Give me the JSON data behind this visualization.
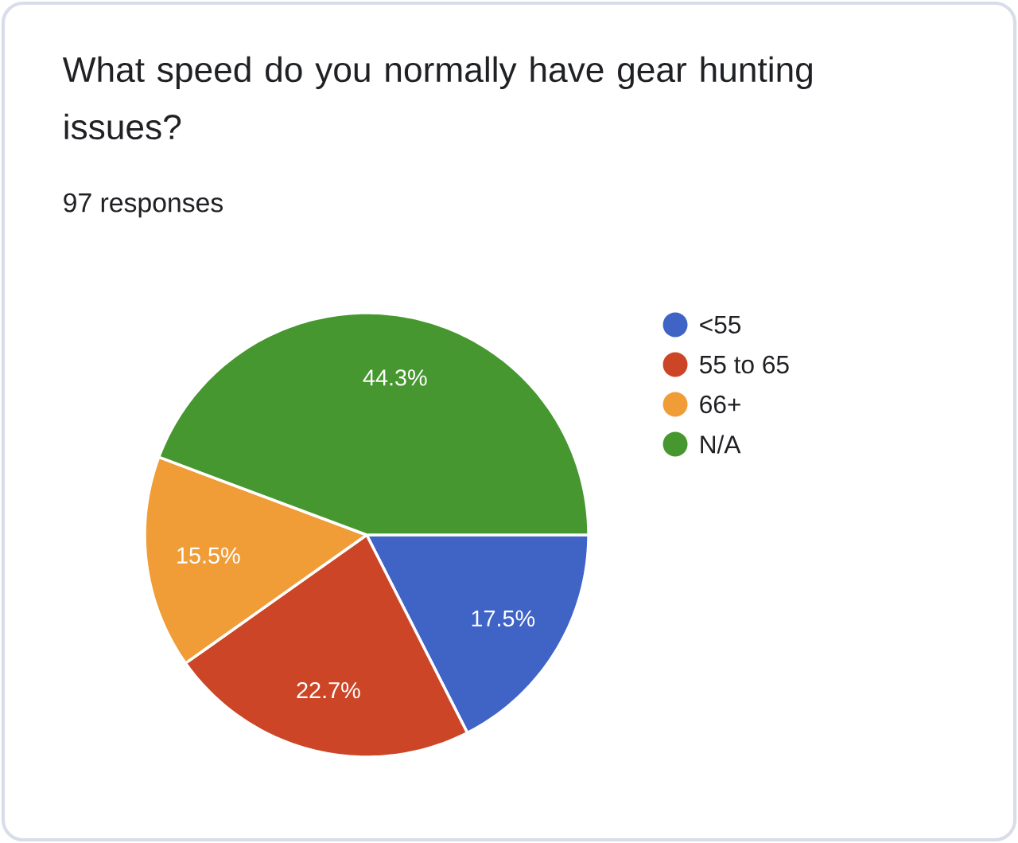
{
  "chart_data": {
    "type": "pie",
    "title": "What speed do you normally have gear hunting issues?",
    "subtitle": "97 responses",
    "categories": [
      "<55",
      "55 to 65",
      "66+",
      "N/A"
    ],
    "values": [
      17.5,
      22.7,
      15.5,
      44.3
    ],
    "value_labels": [
      "17.5%",
      "22.7%",
      "15.5%",
      "44.3%"
    ],
    "colors": [
      "#3f64c5",
      "#cc4526",
      "#f09d38",
      "#46972f"
    ],
    "legend": "right"
  }
}
